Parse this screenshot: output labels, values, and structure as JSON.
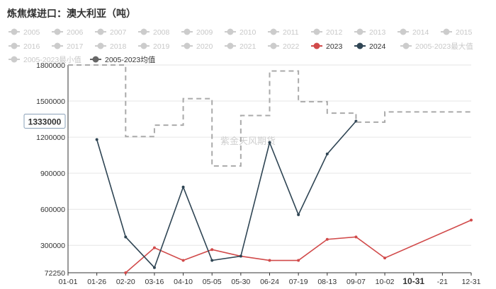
{
  "chart_data": {
    "type": "line",
    "title": "炼焦煤进口：澳大利亚（吨）",
    "watermark": "紫金天风期货",
    "legend": [
      {
        "name": "2005",
        "color": "#cccccc",
        "active": false
      },
      {
        "name": "2006",
        "color": "#cccccc",
        "active": false
      },
      {
        "name": "2007",
        "color": "#cccccc",
        "active": false
      },
      {
        "name": "2008",
        "color": "#cccccc",
        "active": false
      },
      {
        "name": "2009",
        "color": "#cccccc",
        "active": false
      },
      {
        "name": "2010",
        "color": "#cccccc",
        "active": false
      },
      {
        "name": "2011",
        "color": "#cccccc",
        "active": false
      },
      {
        "name": "2012",
        "color": "#cccccc",
        "active": false
      },
      {
        "name": "2013",
        "color": "#cccccc",
        "active": false
      },
      {
        "name": "2014",
        "color": "#cccccc",
        "active": false
      },
      {
        "name": "2015",
        "color": "#cccccc",
        "active": false
      },
      {
        "name": "2016",
        "color": "#cccccc",
        "active": false
      },
      {
        "name": "2017",
        "color": "#cccccc",
        "active": false
      },
      {
        "name": "2018",
        "color": "#cccccc",
        "active": false
      },
      {
        "name": "2019",
        "color": "#cccccc",
        "active": false
      },
      {
        "name": "2020",
        "color": "#cccccc",
        "active": false
      },
      {
        "name": "2021",
        "color": "#cccccc",
        "active": false
      },
      {
        "name": "2022",
        "color": "#cccccc",
        "active": false
      },
      {
        "name": "2023",
        "color": "#d14a4a",
        "active": true
      },
      {
        "name": "2024",
        "color": "#2f4554",
        "active": true
      },
      {
        "name": "2005-2023最大值",
        "color": "#cccccc",
        "active": false
      },
      {
        "name": "2005-2023最小值",
        "color": "#cccccc",
        "active": false
      },
      {
        "name": "2005-2023均值",
        "color": "#666666",
        "active": true
      }
    ],
    "x_ticks": [
      "01-01",
      "01-26",
      "02-20",
      "03-16",
      "04-10",
      "05-05",
      "05-30",
      "06-24",
      "07-19",
      "08-13",
      "09-07",
      "10-02",
      "10-31",
      "-21",
      "12-31"
    ],
    "x_highlight": "10-31",
    "y_ticks": [
      72250,
      300000,
      600000,
      900000,
      1200000,
      1500000,
      1800000
    ],
    "ylim": [
      72250,
      1800000
    ],
    "y_highlight": "1333000",
    "series": [
      {
        "name": "2023",
        "color": "#d14a4a",
        "style": "line",
        "points": [
          [
            "02-20",
            72250
          ],
          [
            "03-16",
            280000
          ],
          [
            "04-10",
            175000
          ],
          [
            "05-05",
            265000
          ],
          [
            "05-30",
            210000
          ],
          [
            "06-24",
            175000
          ],
          [
            "07-19",
            175000
          ],
          [
            "08-13",
            350000
          ],
          [
            "09-07",
            370000
          ],
          [
            "10-02",
            195000
          ],
          [
            "12-31",
            510000
          ]
        ]
      },
      {
        "name": "2024",
        "color": "#2f4554",
        "style": "line",
        "points": [
          [
            "01-26",
            1180000
          ],
          [
            "02-20",
            370000
          ],
          [
            "03-16",
            115000
          ],
          [
            "04-10",
            785000
          ],
          [
            "05-05",
            175000
          ],
          [
            "05-30",
            210000
          ],
          [
            "06-24",
            1155000
          ],
          [
            "07-19",
            555000
          ],
          [
            "08-13",
            1060000
          ],
          [
            "09-07",
            1333000
          ]
        ]
      },
      {
        "name": "2005-2023均值",
        "color": "#aaaaaa",
        "style": "step-dashed",
        "points": [
          [
            "01-01",
            1800000
          ],
          [
            "01-26",
            1800000
          ],
          [
            "02-20",
            1205000
          ],
          [
            "03-16",
            1300000
          ],
          [
            "04-10",
            1520000
          ],
          [
            "05-05",
            960000
          ],
          [
            "05-30",
            1380000
          ],
          [
            "06-24",
            1750000
          ],
          [
            "07-19",
            1495000
          ],
          [
            "08-13",
            1400000
          ],
          [
            "09-07",
            1325000
          ],
          [
            "10-02",
            1410000
          ]
        ]
      }
    ]
  }
}
